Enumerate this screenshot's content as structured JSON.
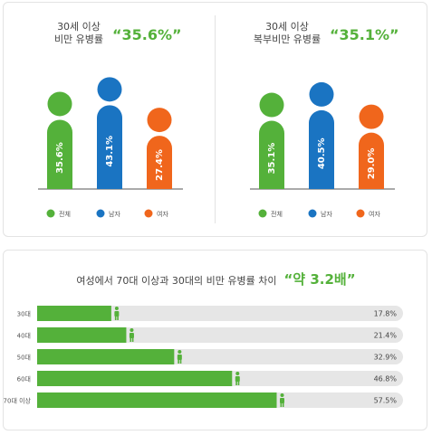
{
  "colors": {
    "green": "#54b13a",
    "blue": "#1a74c2",
    "orange": "#f0661c",
    "track": "#e6e6e6",
    "axis": "#555555"
  },
  "chart_data": [
    {
      "type": "bar",
      "title_lines": [
        "30세 이상",
        "비만 유병률"
      ],
      "highlight": "“35.6%”",
      "categories": [
        "전체",
        "남자",
        "여자"
      ],
      "values": [
        35.6,
        43.1,
        27.4
      ],
      "value_labels": [
        "35.6%",
        "43.1%",
        "27.4%"
      ]
    },
    {
      "type": "bar",
      "title_lines": [
        "30세 이상",
        "복부비만 유병률"
      ],
      "highlight": "“35.1%”",
      "categories": [
        "전체",
        "남자",
        "여자"
      ],
      "values": [
        35.1,
        40.5,
        29.0
      ],
      "value_labels": [
        "35.1%",
        "40.5%",
        "29.0%"
      ]
    },
    {
      "type": "bar",
      "orientation": "horizontal",
      "title": "여성에서 70대 이상과 30대의 비만 유병률 차이",
      "highlight": "“약 3.2배”",
      "categories": [
        "30대",
        "40대",
        "50대",
        "60대",
        "70대 이상"
      ],
      "values": [
        17.8,
        21.4,
        32.9,
        46.8,
        57.5
      ],
      "value_labels": [
        "17.8%",
        "21.4%",
        "32.9%",
        "46.8%",
        "57.5%"
      ]
    }
  ]
}
